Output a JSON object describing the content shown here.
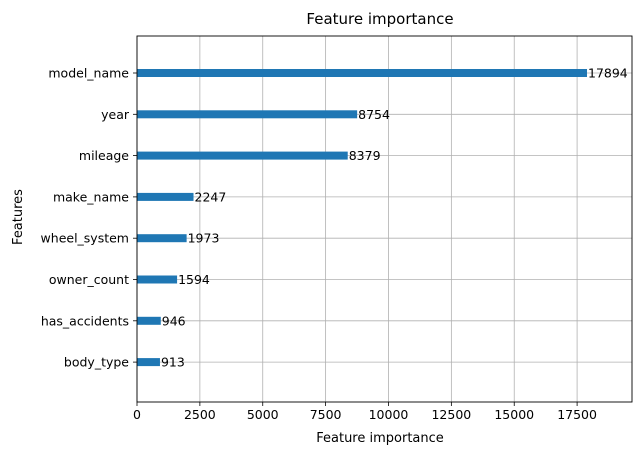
{
  "chart_data": {
    "type": "bar",
    "orientation": "horizontal",
    "title": "Feature importance",
    "xlabel": "Feature importance",
    "ylabel": "Features",
    "categories": [
      "body_type",
      "has_accidents",
      "owner_count",
      "wheel_system",
      "make_name",
      "mileage",
      "year",
      "model_name"
    ],
    "values": [
      913,
      946,
      1594,
      1973,
      2247,
      8379,
      8754,
      17894
    ],
    "value_labels": [
      "913",
      "946",
      "1594",
      "1973",
      "2247",
      "8379",
      "8754",
      "17894"
    ],
    "xlim": [
      0,
      19683
    ],
    "xticks": [
      0,
      2500,
      5000,
      7500,
      10000,
      12500,
      15000,
      17500
    ],
    "xtick_labels": [
      "0",
      "2500",
      "5000",
      "7500",
      "10000",
      "12500",
      "15000",
      "17500"
    ],
    "grid": true,
    "bar_color": "#1f77b4",
    "grid_color": "#b0b0b0"
  }
}
